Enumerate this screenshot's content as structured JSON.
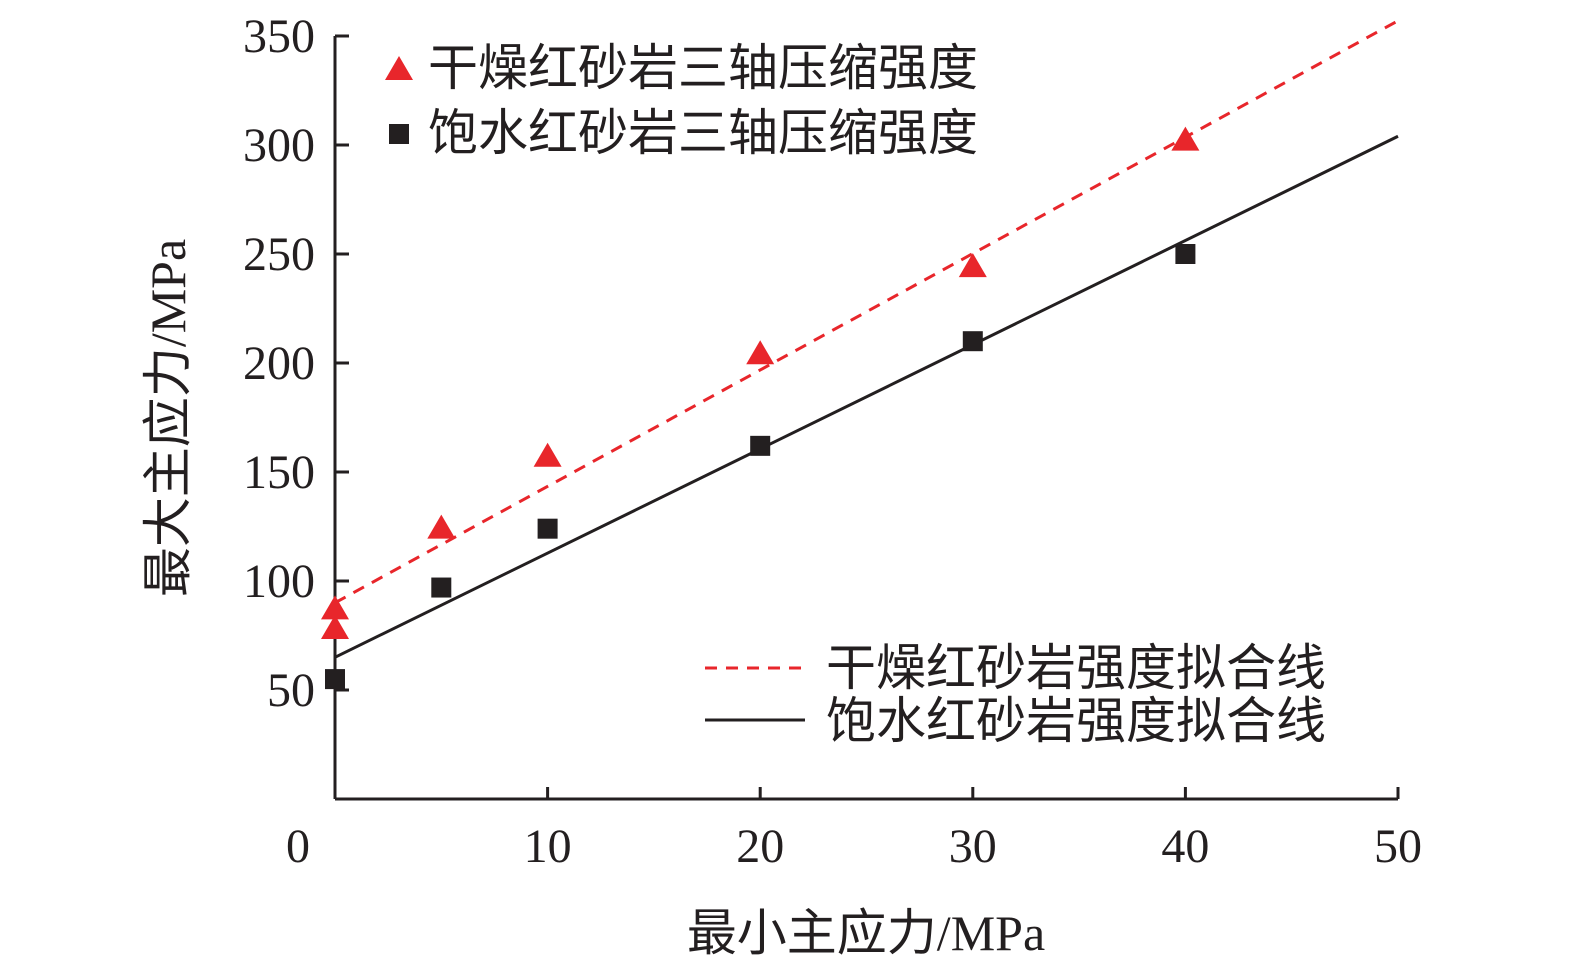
{
  "chart_data": {
    "type": "scatter",
    "xlabel": "最小主应力/MPa",
    "ylabel": "最大主应力/MPa",
    "xlim": [
      0,
      50
    ],
    "ylim": [
      0,
      350
    ],
    "xticks": [
      0,
      10,
      20,
      30,
      40,
      50
    ],
    "yticks": [
      50,
      100,
      150,
      200,
      250,
      300,
      350
    ],
    "grid": false,
    "series": [
      {
        "name": "干燥红砂岩三轴压缩强度",
        "marker": "triangle",
        "color": "#e8262b",
        "x": [
          0,
          0,
          5,
          10,
          20,
          30,
          40
        ],
        "y": [
          87,
          78,
          124,
          157,
          204,
          244,
          302
        ]
      },
      {
        "name": "饱水红砂岩三轴压缩强度",
        "marker": "square",
        "color": "#231f20",
        "x": [
          0,
          5,
          10,
          20,
          30,
          40
        ],
        "y": [
          55,
          97,
          124,
          162,
          210,
          250
        ]
      }
    ],
    "fits": [
      {
        "name": "干燥红砂岩强度拟合线",
        "style": "dashed",
        "color": "#e8262b",
        "x": [
          0,
          50
        ],
        "y": [
          90,
          357
        ]
      },
      {
        "name": "饱水红砂岩强度拟合线",
        "style": "solid",
        "color": "#231f20",
        "x": [
          0,
          50
        ],
        "y": [
          65,
          304
        ]
      }
    ],
    "legend_placement": [
      "top-left",
      "bottom-right"
    ]
  }
}
